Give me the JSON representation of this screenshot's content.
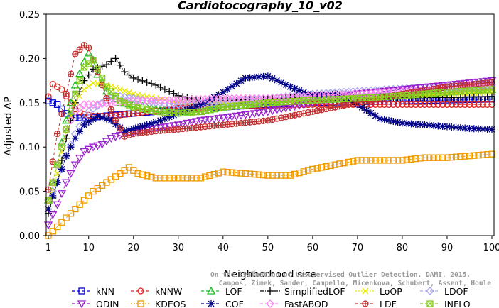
{
  "chart_data": {
    "type": "line",
    "title": "Cardiotocography_10_v02",
    "xlabel": "Neighborhood size",
    "ylabel": "Adjusted AP",
    "xlim": [
      1,
      100
    ],
    "ylim": [
      0,
      0.25
    ],
    "x_ticks": [
      "1",
      "10",
      "20",
      "30",
      "40",
      "50",
      "60",
      "70",
      "80",
      "90",
      "100"
    ],
    "y_ticks": [
      "0.00",
      "0.05",
      "0.10",
      "0.15",
      "0.20",
      "0.25"
    ],
    "grid": false,
    "legend_position": "bottom",
    "watermark": [
      "Campos, Zimek, Sander, Campello, Micenkova, Schubert, Assent, Houle",
      "On the Evaluation of Unsupervised Outlier Detection. DAMI, 2015."
    ],
    "series": [
      {
        "name": "kNN",
        "color": "#0000cc",
        "marker": "square",
        "dash": "4,3",
        "points": [
          [
            1,
            0.152
          ],
          [
            3,
            0.148
          ],
          [
            5,
            0.138
          ],
          [
            7,
            0.133
          ],
          [
            9,
            0.133
          ],
          [
            12,
            0.134
          ],
          [
            15,
            0.136
          ],
          [
            20,
            0.138
          ],
          [
            25,
            0.14
          ],
          [
            30,
            0.142
          ],
          [
            40,
            0.145
          ],
          [
            50,
            0.148
          ],
          [
            60,
            0.15
          ],
          [
            70,
            0.151
          ],
          [
            80,
            0.152
          ],
          [
            90,
            0.153
          ],
          [
            100,
            0.154
          ]
        ]
      },
      {
        "name": "kNNW",
        "color": "#dd2222",
        "marker": "circle",
        "dash": "4,3",
        "points": [
          [
            1,
            0.157
          ],
          [
            2,
            0.171
          ],
          [
            4,
            0.165
          ],
          [
            6,
            0.15
          ],
          [
            7,
            0.143
          ],
          [
            9,
            0.137
          ],
          [
            11,
            0.135
          ],
          [
            15,
            0.135
          ],
          [
            20,
            0.138
          ],
          [
            25,
            0.141
          ],
          [
            30,
            0.144
          ],
          [
            40,
            0.146
          ],
          [
            50,
            0.147
          ],
          [
            60,
            0.148
          ],
          [
            70,
            0.148
          ],
          [
            80,
            0.148
          ],
          [
            90,
            0.148
          ],
          [
            100,
            0.148
          ]
        ]
      },
      {
        "name": "LOF",
        "color": "#22bb22",
        "marker": "triangle",
        "dash": "4,3",
        "points": [
          [
            1,
            0.04
          ],
          [
            3,
            0.08
          ],
          [
            5,
            0.13
          ],
          [
            7,
            0.17
          ],
          [
            9,
            0.196
          ],
          [
            10,
            0.206
          ],
          [
            11,
            0.198
          ],
          [
            12,
            0.182
          ],
          [
            14,
            0.163
          ],
          [
            17,
            0.15
          ],
          [
            20,
            0.148
          ],
          [
            25,
            0.143
          ],
          [
            30,
            0.14
          ],
          [
            35,
            0.14
          ],
          [
            40,
            0.145
          ],
          [
            50,
            0.15
          ],
          [
            60,
            0.153
          ],
          [
            70,
            0.155
          ],
          [
            80,
            0.158
          ],
          [
            90,
            0.162
          ],
          [
            100,
            0.165
          ]
        ]
      },
      {
        "name": "SimplifiedLOF",
        "color": "#000000",
        "marker": "plus",
        "dash": "5,2,1,2",
        "points": [
          [
            1,
            0.025
          ],
          [
            3,
            0.06
          ],
          [
            5,
            0.11
          ],
          [
            7,
            0.15
          ],
          [
            9,
            0.175
          ],
          [
            11,
            0.188
          ],
          [
            14,
            0.193
          ],
          [
            16,
            0.2
          ],
          [
            18,
            0.185
          ],
          [
            20,
            0.178
          ],
          [
            25,
            0.17
          ],
          [
            30,
            0.158
          ],
          [
            35,
            0.152
          ],
          [
            40,
            0.152
          ],
          [
            50,
            0.155
          ],
          [
            60,
            0.156
          ],
          [
            70,
            0.156
          ],
          [
            80,
            0.156
          ],
          [
            90,
            0.156
          ],
          [
            100,
            0.157
          ]
        ]
      },
      {
        "name": "LoOP",
        "color": "#e8e800",
        "marker": "x",
        "dash": "2,2",
        "points": [
          [
            1,
            0.03
          ],
          [
            3,
            0.07
          ],
          [
            5,
            0.12
          ],
          [
            7,
            0.15
          ],
          [
            9,
            0.165
          ],
          [
            11,
            0.172
          ],
          [
            14,
            0.17
          ],
          [
            17,
            0.165
          ],
          [
            20,
            0.16
          ],
          [
            25,
            0.155
          ],
          [
            30,
            0.15
          ],
          [
            40,
            0.15
          ],
          [
            50,
            0.152
          ],
          [
            60,
            0.155
          ],
          [
            70,
            0.157
          ],
          [
            80,
            0.158
          ],
          [
            90,
            0.16
          ],
          [
            100,
            0.162
          ]
        ]
      },
      {
        "name": "LDOF",
        "color": "#a8a8ee",
        "marker": "diamond",
        "dash": "4,3",
        "points": [
          [
            1,
            0.04
          ],
          [
            3,
            0.06
          ],
          [
            5,
            0.09
          ],
          [
            7,
            0.115
          ],
          [
            10,
            0.14
          ],
          [
            13,
            0.15
          ],
          [
            16,
            0.158
          ],
          [
            20,
            0.155
          ],
          [
            25,
            0.15
          ],
          [
            30,
            0.148
          ],
          [
            40,
            0.15
          ],
          [
            50,
            0.155
          ],
          [
            60,
            0.16
          ],
          [
            70,
            0.163
          ],
          [
            80,
            0.166
          ],
          [
            90,
            0.168
          ],
          [
            100,
            0.17
          ]
        ]
      },
      {
        "name": "ODIN",
        "color": "#9922cc",
        "marker": "dtriangle",
        "dash": "4,3",
        "points": [
          [
            1,
            0.012
          ],
          [
            3,
            0.035
          ],
          [
            5,
            0.06
          ],
          [
            7,
            0.08
          ],
          [
            9,
            0.095
          ],
          [
            11,
            0.1
          ],
          [
            13,
            0.103
          ],
          [
            15,
            0.11
          ],
          [
            18,
            0.115
          ],
          [
            22,
            0.118
          ],
          [
            26,
            0.122
          ],
          [
            30,
            0.125
          ],
          [
            35,
            0.13
          ],
          [
            40,
            0.133
          ],
          [
            50,
            0.14
          ],
          [
            60,
            0.15
          ],
          [
            70,
            0.16
          ],
          [
            80,
            0.165
          ],
          [
            90,
            0.17
          ],
          [
            100,
            0.175
          ]
        ]
      },
      {
        "name": "KDEOS",
        "color": "#ee9900",
        "marker": "square",
        "dash": "2,2",
        "points": [
          [
            1,
            0.0
          ],
          [
            3,
            0.01
          ],
          [
            5,
            0.02
          ],
          [
            7,
            0.03
          ],
          [
            9,
            0.04
          ],
          [
            11,
            0.05
          ],
          [
            14,
            0.06
          ],
          [
            17,
            0.07
          ],
          [
            19,
            0.077
          ],
          [
            21,
            0.07
          ],
          [
            25,
            0.065
          ],
          [
            30,
            0.065
          ],
          [
            35,
            0.065
          ],
          [
            40,
            0.072
          ],
          [
            45,
            0.07
          ],
          [
            50,
            0.068
          ],
          [
            55,
            0.068
          ],
          [
            60,
            0.075
          ],
          [
            65,
            0.08
          ],
          [
            70,
            0.085
          ],
          [
            75,
            0.085
          ],
          [
            80,
            0.085
          ],
          [
            85,
            0.088
          ],
          [
            90,
            0.088
          ],
          [
            95,
            0.09
          ],
          [
            100,
            0.092
          ]
        ]
      },
      {
        "name": "COF",
        "color": "#000088",
        "marker": "star",
        "dash": "4,3",
        "points": [
          [
            1,
            0.03
          ],
          [
            3,
            0.06
          ],
          [
            5,
            0.09
          ],
          [
            7,
            0.11
          ],
          [
            9,
            0.125
          ],
          [
            12,
            0.135
          ],
          [
            15,
            0.13
          ],
          [
            18,
            0.118
          ],
          [
            21,
            0.122
          ],
          [
            25,
            0.128
          ],
          [
            30,
            0.138
          ],
          [
            35,
            0.148
          ],
          [
            40,
            0.162
          ],
          [
            45,
            0.178
          ],
          [
            50,
            0.18
          ],
          [
            55,
            0.168
          ],
          [
            60,
            0.158
          ],
          [
            65,
            0.16
          ],
          [
            70,
            0.148
          ],
          [
            75,
            0.132
          ],
          [
            80,
            0.127
          ],
          [
            85,
            0.125
          ],
          [
            90,
            0.123
          ],
          [
            95,
            0.121
          ],
          [
            100,
            0.12
          ]
        ]
      },
      {
        "name": "FastABOD",
        "color": "#ff88ee",
        "marker": "diamond",
        "dash": "4,3",
        "points": [
          [
            1,
            0.04
          ],
          [
            3,
            0.08
          ],
          [
            5,
            0.12
          ],
          [
            7,
            0.14
          ],
          [
            9,
            0.148
          ],
          [
            12,
            0.148
          ],
          [
            15,
            0.15
          ],
          [
            20,
            0.152
          ],
          [
            30,
            0.153
          ],
          [
            40,
            0.155
          ],
          [
            50,
            0.155
          ],
          [
            60,
            0.158
          ],
          [
            70,
            0.16
          ],
          [
            80,
            0.163
          ],
          [
            90,
            0.165
          ],
          [
            100,
            0.168
          ]
        ]
      },
      {
        "name": "LDF",
        "color": "#c03030",
        "marker": "circleplus",
        "dash": "4,3",
        "points": [
          [
            1,
            0.052
          ],
          [
            3,
            0.115
          ],
          [
            5,
            0.16
          ],
          [
            7,
            0.205
          ],
          [
            9,
            0.215
          ],
          [
            10,
            0.212
          ],
          [
            12,
            0.185
          ],
          [
            14,
            0.155
          ],
          [
            16,
            0.13
          ],
          [
            18,
            0.112
          ],
          [
            20,
            0.115
          ],
          [
            25,
            0.118
          ],
          [
            30,
            0.12
          ],
          [
            40,
            0.125
          ],
          [
            50,
            0.13
          ],
          [
            60,
            0.14
          ],
          [
            70,
            0.15
          ],
          [
            80,
            0.16
          ],
          [
            90,
            0.168
          ],
          [
            100,
            0.173
          ]
        ]
      },
      {
        "name": "INFLO",
        "color": "#88cc22",
        "marker": "xsquare",
        "dash": "4,3",
        "points": [
          [
            1,
            0.04
          ],
          [
            3,
            0.08
          ],
          [
            5,
            0.12
          ],
          [
            7,
            0.16
          ],
          [
            9,
            0.19
          ],
          [
            11,
            0.198
          ],
          [
            12,
            0.188
          ],
          [
            14,
            0.168
          ],
          [
            17,
            0.152
          ],
          [
            20,
            0.145
          ],
          [
            25,
            0.14
          ],
          [
            30,
            0.138
          ],
          [
            35,
            0.14
          ],
          [
            40,
            0.145
          ],
          [
            50,
            0.15
          ],
          [
            60,
            0.153
          ],
          [
            70,
            0.155
          ],
          [
            80,
            0.158
          ],
          [
            90,
            0.162
          ],
          [
            100,
            0.165
          ]
        ]
      }
    ]
  }
}
